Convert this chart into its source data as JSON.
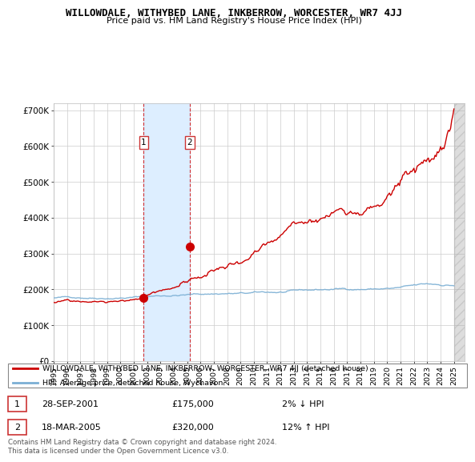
{
  "title": "WILLOWDALE, WITHYBED LANE, INKBERROW, WORCESTER, WR7 4JJ",
  "subtitle": "Price paid vs. HM Land Registry's House Price Index (HPI)",
  "x_start_year": 1995,
  "x_end_year": 2025,
  "y_ticks": [
    0,
    100000,
    200000,
    300000,
    400000,
    500000,
    600000,
    700000
  ],
  "y_tick_labels": [
    "£0",
    "£100K",
    "£200K",
    "£300K",
    "£400K",
    "£500K",
    "£600K",
    "£700K"
  ],
  "ylim": [
    0,
    720000
  ],
  "hpi_color": "#7bafd4",
  "price_color": "#cc0000",
  "transaction1_year": 2001.75,
  "transaction1_price": 175000,
  "transaction1_label": "1",
  "transaction1_date": "28-SEP-2001",
  "transaction1_hpi": "2% ↓ HPI",
  "transaction2_year": 2005.21,
  "transaction2_price": 320000,
  "transaction2_label": "2",
  "transaction2_date": "18-MAR-2005",
  "transaction2_hpi": "12% ↑ HPI",
  "legend_line1": "WILLOWDALE, WITHYBED LANE, INKBERROW, WORCESTER, WR7 4JJ (detached house)",
  "legend_line2": "HPI: Average price, detached house, Wychavon",
  "footnote": "Contains HM Land Registry data © Crown copyright and database right 2024.\nThis data is licensed under the Open Government Licence v3.0.",
  "grid_color": "#cccccc",
  "shaded_region_color": "#ddeeff",
  "hatch_color": "#cccccc"
}
